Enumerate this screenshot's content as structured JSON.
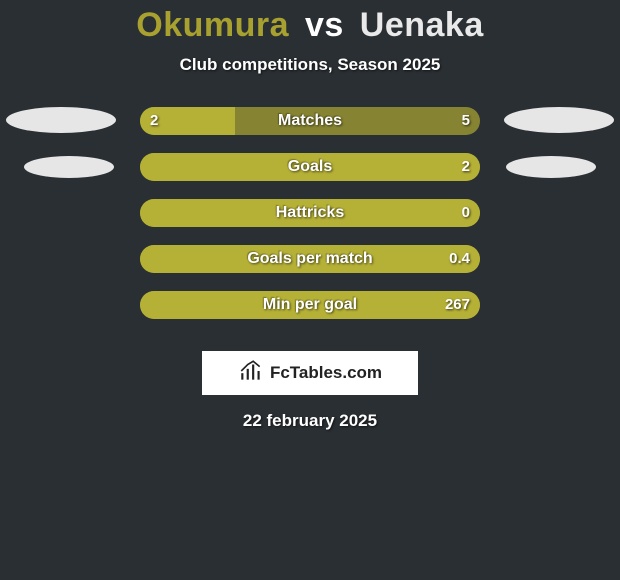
{
  "background_color": "#2a2f33",
  "title": {
    "player1": "Okumura",
    "vs": "vs",
    "player2": "Uenaka",
    "color_p1": "#a8a130",
    "color_vs": "#ffffff",
    "color_p2": "#e9e9e9",
    "fontsize": 34
  },
  "subtitle": {
    "text": "Club competitions, Season 2025",
    "fontsize": 17
  },
  "ellipse_colors": {
    "left": "#e6e6e6",
    "right": "#e6e6e6"
  },
  "bar_defaults": {
    "track_color": "#868432",
    "left_fill": "#b5b036",
    "right_fill": "#868432",
    "height": 28,
    "radius": 14,
    "track_width": 340
  },
  "rows": [
    {
      "label": "Matches",
      "left_value": "2",
      "right_value": "5",
      "left_pct": 28,
      "show_ellipses": true
    },
    {
      "label": "Goals",
      "left_value": "",
      "right_value": "2",
      "left_pct": 100,
      "show_ellipses": true,
      "ellipse_inset": true
    },
    {
      "label": "Hattricks",
      "left_value": "",
      "right_value": "0",
      "left_pct": 100,
      "show_ellipses": false
    },
    {
      "label": "Goals per match",
      "left_value": "",
      "right_value": "0.4",
      "left_pct": 100,
      "show_ellipses": false
    },
    {
      "label": "Min per goal",
      "left_value": "",
      "right_value": "267",
      "left_pct": 100,
      "show_ellipses": false
    }
  ],
  "logo": {
    "text": "FcTables.com",
    "icon_name": "bar-chart-icon"
  },
  "date": {
    "text": "22 february 2025"
  }
}
